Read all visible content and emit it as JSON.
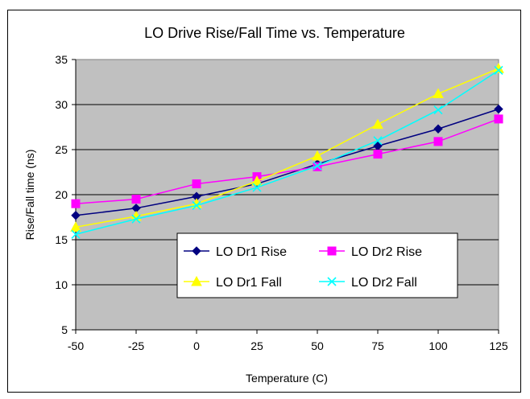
{
  "chart_data": {
    "type": "line",
    "title": "LO Drive Rise/Fall Time vs. Temperature",
    "xlabel": "Temperature (C)",
    "ylabel": "Rise/Fall time (ns)",
    "x": [
      -50,
      -25,
      0,
      25,
      50,
      75,
      100,
      125
    ],
    "x_ticks": [
      "-50",
      "-25",
      "0",
      "25",
      "50",
      "75",
      "100",
      "125"
    ],
    "y_ticks": [
      "5",
      "10",
      "15",
      "20",
      "25",
      "30",
      "35"
    ],
    "xlim": [
      -50,
      125
    ],
    "ylim": [
      5,
      35
    ],
    "grid": true,
    "plot_background": "#c0c0c0",
    "legend_position": "inside-lower-right",
    "series": [
      {
        "name": "LO Dr1 Rise",
        "color": "#000080",
        "marker": "diamond",
        "values": [
          17.7,
          18.5,
          19.8,
          21.2,
          23.4,
          25.4,
          27.3,
          29.5
        ]
      },
      {
        "name": "LO Dr2 Rise",
        "color": "#ff00ff",
        "marker": "square",
        "values": [
          19.0,
          19.5,
          21.2,
          22.0,
          23.1,
          24.5,
          25.9,
          28.4
        ]
      },
      {
        "name": "LO Dr1 Fall",
        "color": "#ffff00",
        "marker": "triangle",
        "values": [
          16.4,
          17.6,
          19.0,
          21.5,
          24.3,
          27.8,
          31.2,
          34.0
        ]
      },
      {
        "name": "LO Dr2 Fall",
        "color": "#00ffff",
        "marker": "x",
        "values": [
          15.6,
          17.3,
          18.8,
          20.8,
          23.2,
          26.0,
          29.4,
          33.8
        ]
      }
    ]
  }
}
